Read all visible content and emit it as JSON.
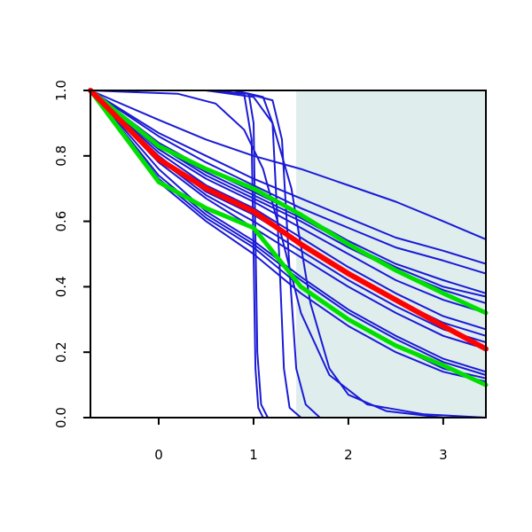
{
  "chart_data": {
    "type": "line",
    "title": "",
    "xlabel": "",
    "ylabel": "",
    "xlim": [
      -0.72,
      3.45
    ],
    "ylim": [
      0,
      1
    ],
    "x_ticks": [
      "0",
      "1",
      "2",
      "3"
    ],
    "y_ticks": [
      "0.0",
      "0.2",
      "0.4",
      "0.6",
      "0.8",
      "1.0"
    ],
    "shaded_region": {
      "x": [
        1.45,
        3.45
      ],
      "y": [
        0,
        1
      ],
      "color": "#e0eded"
    },
    "grid": false,
    "legend": "none",
    "colors": {
      "family": "#1a1ad6",
      "highlight": "#ff0000",
      "bounds": "#00e000",
      "axis": "#000000"
    },
    "series": [
      {
        "role": "family",
        "x": [
          -0.72,
          0,
          0.5,
          1,
          1.5,
          2,
          2.5,
          3,
          3.45
        ],
        "y": [
          1.0,
          0.91,
          0.85,
          0.8,
          0.76,
          0.71,
          0.66,
          0.6,
          0.545
        ]
      },
      {
        "role": "family",
        "x": [
          -0.72,
          0,
          0.5,
          1,
          1.5,
          2,
          2.5,
          3,
          3.45
        ],
        "y": [
          1.0,
          0.87,
          0.8,
          0.73,
          0.67,
          0.61,
          0.55,
          0.51,
          0.47
        ]
      },
      {
        "role": "family",
        "x": [
          -0.72,
          0,
          0.5,
          1,
          1.5,
          2,
          2.5,
          3,
          3.45
        ],
        "y": [
          1.0,
          0.86,
          0.78,
          0.71,
          0.64,
          0.58,
          0.52,
          0.48,
          0.44
        ]
      },
      {
        "role": "family",
        "x": [
          -0.72,
          0,
          0.5,
          1,
          1.5,
          2,
          2.5,
          3,
          3.45
        ],
        "y": [
          1.0,
          0.84,
          0.76,
          0.69,
          0.62,
          0.54,
          0.47,
          0.42,
          0.38
        ]
      },
      {
        "role": "family",
        "x": [
          -0.72,
          0,
          0.5,
          1,
          1.5,
          2,
          2.5,
          3,
          3.45
        ],
        "y": [
          1.0,
          0.83,
          0.75,
          0.68,
          0.61,
          0.53,
          0.46,
          0.4,
          0.37
        ]
      },
      {
        "role": "family",
        "x": [
          -0.72,
          0,
          0.5,
          1,
          1.5,
          2,
          2.5,
          3,
          3.45
        ],
        "y": [
          1.0,
          0.83,
          0.74,
          0.67,
          0.6,
          0.52,
          0.45,
          0.39,
          0.35
        ]
      },
      {
        "role": "family",
        "x": [
          -0.72,
          0,
          0.5,
          1,
          1.5,
          2,
          2.5,
          3,
          3.45
        ],
        "y": [
          1.0,
          0.82,
          0.73,
          0.66,
          0.58,
          0.5,
          0.42,
          0.36,
          0.32
        ]
      },
      {
        "role": "family",
        "x": [
          -0.72,
          0,
          0.5,
          1,
          1.5,
          2,
          2.5,
          3,
          3.45
        ],
        "y": [
          1.0,
          0.81,
          0.71,
          0.64,
          0.55,
          0.46,
          0.38,
          0.31,
          0.27
        ]
      },
      {
        "role": "family",
        "x": [
          -0.72,
          0,
          0.5,
          1,
          1.5,
          2,
          2.5,
          3,
          3.45
        ],
        "y": [
          1.0,
          0.8,
          0.69,
          0.62,
          0.53,
          0.44,
          0.36,
          0.29,
          0.25
        ]
      },
      {
        "role": "family",
        "x": [
          -0.72,
          0,
          0.5,
          1,
          1.5,
          2,
          2.5,
          3,
          3.45
        ],
        "y": [
          1.0,
          0.79,
          0.68,
          0.6,
          0.51,
          0.42,
          0.34,
          0.27,
          0.23
        ]
      },
      {
        "role": "family",
        "x": [
          -0.72,
          0,
          0.5,
          1,
          1.5,
          2,
          2.5,
          3,
          3.45
        ],
        "y": [
          1.0,
          0.78,
          0.67,
          0.58,
          0.49,
          0.4,
          0.32,
          0.25,
          0.21
        ]
      },
      {
        "role": "family",
        "x": [
          -0.72,
          0,
          0.5,
          1,
          1.5,
          2,
          2.5,
          3,
          3.45
        ],
        "y": [
          1.0,
          0.76,
          0.63,
          0.54,
          0.43,
          0.33,
          0.25,
          0.18,
          0.14
        ]
      },
      {
        "role": "family",
        "x": [
          -0.72,
          0,
          0.5,
          1,
          1.5,
          2,
          2.5,
          3,
          3.45
        ],
        "y": [
          1.0,
          0.74,
          0.62,
          0.53,
          0.42,
          0.32,
          0.24,
          0.17,
          0.13
        ]
      },
      {
        "role": "family",
        "x": [
          -0.72,
          0,
          0.5,
          1,
          1.5,
          2,
          2.5,
          3,
          3.45
        ],
        "y": [
          1.0,
          0.73,
          0.61,
          0.52,
          0.4,
          0.3,
          0.22,
          0.15,
          0.12
        ]
      },
      {
        "role": "family",
        "x": [
          -0.72,
          0,
          0.5,
          1,
          1.5,
          2,
          2.5,
          3,
          3.45
        ],
        "y": [
          1.0,
          0.72,
          0.6,
          0.5,
          0.38,
          0.28,
          0.2,
          0.14,
          0.11
        ]
      },
      {
        "role": "family",
        "x": [
          -0.72,
          0.5,
          0.9,
          0.98,
          1.0,
          1.02,
          1.05,
          1.1,
          3.45
        ],
        "y": [
          1.0,
          1.0,
          0.99,
          0.85,
          0.5,
          0.15,
          0.03,
          0.0,
          0.0
        ]
      },
      {
        "role": "family",
        "x": [
          -0.72,
          0.5,
          0.95,
          1.0,
          1.02,
          1.04,
          1.08,
          1.15,
          3.45
        ],
        "y": [
          1.0,
          1.0,
          0.99,
          0.9,
          0.55,
          0.2,
          0.04,
          0.0,
          0.0
        ]
      },
      {
        "role": "family",
        "x": [
          -0.72,
          0.8,
          1.1,
          1.2,
          1.27,
          1.32,
          1.38,
          1.5,
          3.45
        ],
        "y": [
          1.0,
          1.0,
          0.98,
          0.9,
          0.5,
          0.15,
          0.03,
          0.0,
          0.0
        ]
      },
      {
        "role": "family",
        "x": [
          -0.72,
          0.8,
          1.2,
          1.3,
          1.38,
          1.45,
          1.55,
          1.7,
          3.45
        ],
        "y": [
          1.0,
          1.0,
          0.97,
          0.85,
          0.45,
          0.15,
          0.04,
          0.0,
          0.0
        ]
      },
      {
        "role": "family",
        "x": [
          -0.72,
          0.2,
          0.6,
          0.9,
          1.1,
          1.3,
          1.5,
          1.8,
          2.2,
          2.8,
          3.45
        ],
        "y": [
          1.0,
          0.99,
          0.96,
          0.88,
          0.76,
          0.55,
          0.32,
          0.13,
          0.04,
          0.01,
          0.0
        ]
      },
      {
        "role": "family",
        "x": [
          -0.72,
          0.5,
          1.0,
          1.2,
          1.4,
          1.6,
          1.8,
          2.0,
          2.4,
          3.0,
          3.45
        ],
        "y": [
          1.0,
          1.0,
          0.98,
          0.9,
          0.7,
          0.35,
          0.15,
          0.07,
          0.02,
          0.0,
          0.0
        ]
      },
      {
        "role": "highlight",
        "x": [
          -0.72,
          0,
          0.5,
          1,
          1.5,
          2,
          2.5,
          3,
          3.45
        ],
        "y": [
          1.0,
          0.79,
          0.7,
          0.63,
          0.53,
          0.44,
          0.36,
          0.28,
          0.21
        ]
      },
      {
        "role": "bounds",
        "x": [
          -0.72,
          0,
          0.5,
          1,
          1.5,
          2,
          2.5,
          3,
          3.45
        ],
        "y": [
          1.0,
          0.83,
          0.76,
          0.7,
          0.62,
          0.53,
          0.45,
          0.38,
          0.32
        ]
      },
      {
        "role": "bounds",
        "x": [
          -0.72,
          0,
          0.5,
          1,
          1.5,
          2,
          2.5,
          3,
          3.45
        ],
        "y": [
          1.0,
          0.72,
          0.64,
          0.58,
          0.4,
          0.3,
          0.22,
          0.16,
          0.1
        ]
      }
    ]
  }
}
